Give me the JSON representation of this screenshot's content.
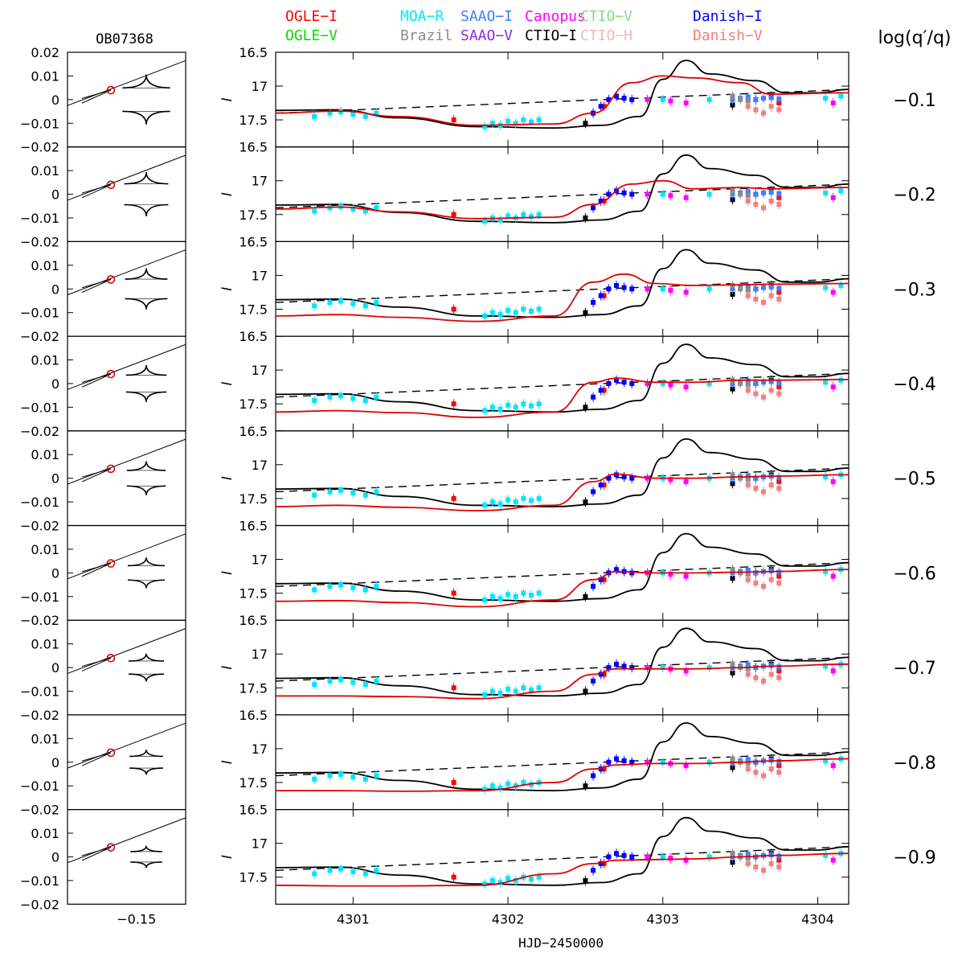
{
  "chart_data": {
    "type": "line",
    "left_panel_title": "OB07368",
    "right_axis_title": "log(q′/q)",
    "ylabel": "I",
    "xlabel": "HJD−2450000",
    "left_xtick_labels": [
      "−0.15"
    ],
    "left_ytick_labels": [
      "0.02",
      "0.01",
      "0",
      "−0.01",
      "−0.02"
    ],
    "right_ytick_labels": [
      "16.5",
      "17",
      "17.5"
    ],
    "x_tick_labels": [
      "4301",
      "4302",
      "4303",
      "4304"
    ],
    "xlim": [
      4300.5,
      4304.2
    ],
    "ylim": [
      17.9,
      16.5
    ],
    "left_xlim": [
      -0.185,
      -0.125
    ],
    "left_ylim": [
      -0.02,
      0.02
    ],
    "row_values": [
      "−0.1",
      "−0.2",
      "−0.3",
      "−0.4",
      "−0.5",
      "−0.6",
      "−0.7",
      "−0.8",
      "−0.9"
    ],
    "legend": [
      {
        "label": "OGLE−I",
        "color": "#ff0000"
      },
      {
        "label": "OGLE−V",
        "color": "#00dd00"
      },
      {
        "label": "MOA−R",
        "color": "#00e5ff"
      },
      {
        "label": "Brazil",
        "color": "#8c8c8c"
      },
      {
        "label": "SAAO−I",
        "color": "#3d7fff"
      },
      {
        "label": "SAAO−V",
        "color": "#8a2be2"
      },
      {
        "label": "Canopus",
        "color": "#ff00ff"
      },
      {
        "label": "CTIO−I",
        "color": "#000000"
      },
      {
        "label": "CTIO−V",
        "color": "#88dd88"
      },
      {
        "label": "CTIO−H",
        "color": "#f2b6b6"
      },
      {
        "label": "Danish−I",
        "color": "#0000ff"
      },
      {
        "label": "Danish−V",
        "color": "#f08080"
      }
    ],
    "caustic_offsets": [
      0.009,
      0.008,
      0.0075,
      0.0065,
      0.006,
      0.0055,
      0.005,
      0.0045,
      0.004
    ],
    "caustic_sizes": [
      0.016,
      0.014,
      0.013,
      0.012,
      0.011,
      0.01,
      0.009,
      0.008,
      0.007
    ],
    "single_lens_curve": {
      "x": [
        4300.5,
        4300.9,
        4301.3,
        4301.8,
        4302.3,
        4302.6,
        4302.85,
        4303.0,
        4303.15,
        4303.3,
        4303.6,
        4303.8,
        4304.0,
        4304.2
      ],
      "y": [
        17.36,
        17.35,
        17.47,
        17.6,
        17.62,
        17.58,
        17.45,
        16.9,
        16.62,
        16.82,
        16.92,
        17.1,
        17.1,
        17.05
      ]
    },
    "baseline_curve": {
      "x": [
        4300.5,
        4304.2
      ],
      "y": [
        17.4,
        17.05
      ]
    },
    "fits": [
      {
        "x": [
          4300.5,
          4300.9,
          4301.3,
          4301.8,
          4302.3,
          4302.55,
          4302.8,
          4303.0,
          4303.2,
          4303.5,
          4303.7,
          4304.2
        ],
        "y": [
          17.4,
          17.37,
          17.45,
          17.58,
          17.56,
          17.4,
          16.95,
          16.85,
          16.88,
          16.95,
          17.12,
          17.1
        ]
      },
      {
        "x": [
          4300.5,
          4300.9,
          4301.3,
          4301.8,
          4302.3,
          4302.55,
          4302.8,
          4303.0,
          4303.2,
          4303.5,
          4303.7,
          4304.2
        ],
        "y": [
          17.42,
          17.39,
          17.46,
          17.56,
          17.54,
          17.35,
          17.05,
          17.0,
          17.12,
          17.1,
          17.12,
          17.1
        ]
      },
      {
        "x": [
          4300.5,
          4300.9,
          4301.3,
          4301.8,
          4302.3,
          4302.55,
          4302.75,
          4302.95,
          4303.2,
          4303.5,
          4303.7,
          4304.2
        ],
        "y": [
          17.6,
          17.58,
          17.62,
          17.68,
          17.6,
          17.1,
          16.98,
          17.12,
          17.15,
          17.14,
          17.13,
          17.12
        ]
      },
      {
        "x": [
          4300.5,
          4300.9,
          4301.3,
          4301.8,
          4302.3,
          4302.55,
          4302.7,
          4302.95,
          4303.2,
          4303.5,
          4303.7,
          4304.2
        ],
        "y": [
          17.62,
          17.6,
          17.63,
          17.7,
          17.62,
          17.18,
          17.12,
          17.18,
          17.18,
          17.15,
          17.15,
          17.14
        ]
      },
      {
        "x": [
          4300.5,
          4300.9,
          4301.3,
          4301.8,
          4302.3,
          4302.55,
          4302.7,
          4302.95,
          4303.2,
          4303.5,
          4303.7,
          4304.2
        ],
        "y": [
          17.62,
          17.6,
          17.63,
          17.68,
          17.6,
          17.25,
          17.14,
          17.2,
          17.2,
          17.18,
          17.17,
          17.15
        ]
      },
      {
        "x": [
          4300.5,
          4300.9,
          4301.3,
          4301.8,
          4302.3,
          4302.55,
          4302.7,
          4302.95,
          4303.2,
          4303.5,
          4303.7,
          4304.2
        ],
        "y": [
          17.62,
          17.61,
          17.64,
          17.7,
          17.6,
          17.3,
          17.18,
          17.2,
          17.2,
          17.19,
          17.18,
          17.15
        ]
      },
      {
        "x": [
          4300.5,
          4300.9,
          4301.3,
          4301.8,
          4302.3,
          4302.55,
          4302.7,
          4302.95,
          4303.2,
          4303.5,
          4303.7,
          4304.2
        ],
        "y": [
          17.62,
          17.62,
          17.63,
          17.66,
          17.55,
          17.3,
          17.22,
          17.22,
          17.22,
          17.2,
          17.18,
          17.15
        ]
      },
      {
        "x": [
          4300.5,
          4300.9,
          4301.3,
          4301.8,
          4302.3,
          4302.55,
          4302.7,
          4302.95,
          4303.2,
          4303.5,
          4303.7,
          4304.2
        ],
        "y": [
          17.62,
          17.62,
          17.63,
          17.62,
          17.5,
          17.3,
          17.24,
          17.22,
          17.22,
          17.2,
          17.18,
          17.15
        ]
      },
      {
        "x": [
          4300.5,
          4300.9,
          4301.3,
          4301.8,
          4302.3,
          4302.55,
          4302.7,
          4302.95,
          4303.2,
          4303.5,
          4303.7,
          4304.2
        ],
        "y": [
          17.62,
          17.63,
          17.63,
          17.62,
          17.45,
          17.3,
          17.25,
          17.24,
          17.23,
          17.2,
          17.18,
          17.15
        ]
      }
    ],
    "data_points": [
      {
        "series": "MOA−R",
        "x": [
          4300.75,
          4300.85,
          4300.92,
          4301.0,
          4301.08,
          4301.15,
          4301.85,
          4301.9,
          4301.95,
          4302.0,
          4302.05,
          4302.1,
          4302.15,
          4302.2,
          4303.0,
          4303.3,
          4303.55,
          4304.05,
          4304.15
        ],
        "y": [
          17.45,
          17.4,
          17.38,
          17.42,
          17.45,
          17.4,
          17.6,
          17.55,
          17.58,
          17.52,
          17.55,
          17.5,
          17.53,
          17.5,
          17.2,
          17.2,
          17.2,
          17.18,
          17.15
        ]
      },
      {
        "series": "OGLE−I",
        "x": [
          4301.65,
          4302.62,
          4303.75
        ],
        "y": [
          17.5,
          17.3,
          17.25
        ]
      },
      {
        "series": "CTIO−I",
        "x": [
          4302.5,
          4303.45,
          4303.6,
          4303.7
        ],
        "y": [
          17.55,
          17.28,
          17.2,
          17.15
        ]
      },
      {
        "series": "Danish−I",
        "x": [
          4302.55,
          4302.6,
          4302.65,
          4302.7,
          4302.75,
          4302.8
        ],
        "y": [
          17.4,
          17.3,
          17.2,
          17.15,
          17.18,
          17.2
        ]
      },
      {
        "series": "SAAO−I",
        "x": [
          4303.45,
          4303.5,
          4303.55,
          4303.6,
          4303.65,
          4303.7,
          4303.75
        ],
        "y": [
          17.2,
          17.18,
          17.16,
          17.2,
          17.18,
          17.17,
          17.19
        ]
      },
      {
        "series": "Canopus",
        "x": [
          4302.9,
          4303.05,
          4303.15,
          4304.1
        ],
        "y": [
          17.2,
          17.22,
          17.25,
          17.25
        ]
      },
      {
        "series": "Brazil",
        "x": [
          4303.45,
          4303.5,
          4303.55
        ],
        "y": [
          17.15,
          17.2,
          17.22
        ]
      },
      {
        "series": "Danish−V",
        "x": [
          4303.55,
          4303.6,
          4303.65,
          4303.7,
          4303.75
        ],
        "y": [
          17.3,
          17.35,
          17.4,
          17.3,
          17.35
        ]
      }
    ]
  }
}
